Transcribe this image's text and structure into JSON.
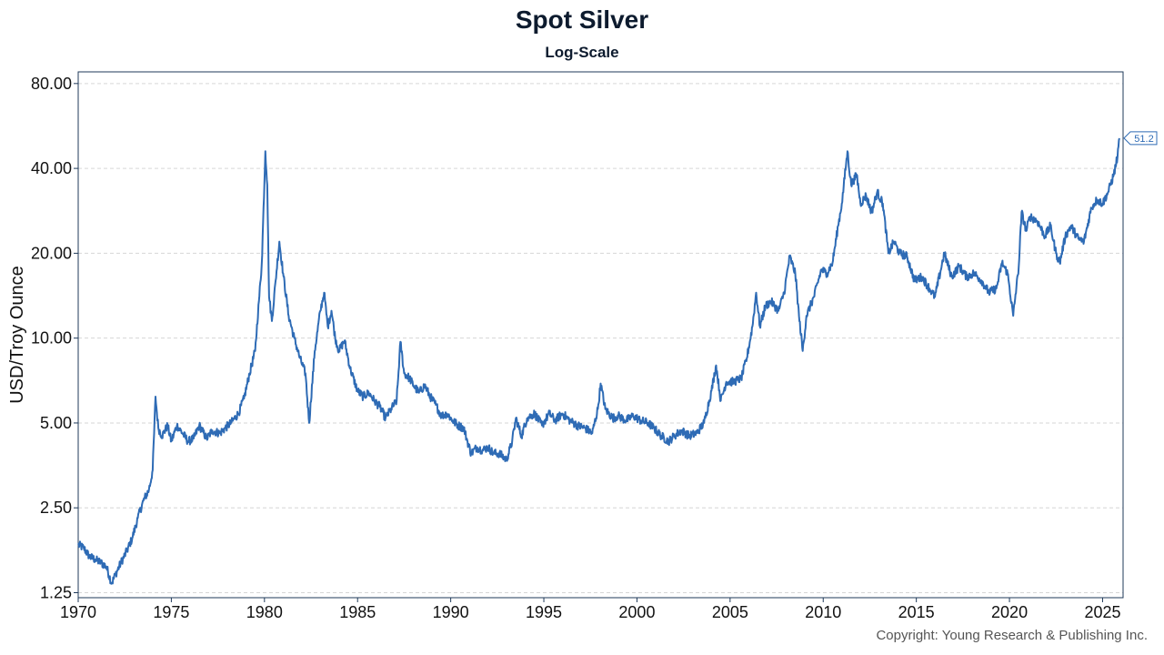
{
  "chart_data": {
    "type": "line",
    "title": "Spot Silver",
    "subtitle": "Log-Scale",
    "xlabel": "",
    "ylabel": "USD/Troy Ounce",
    "y_scale": "log",
    "ylim": [
      1.2,
      88
    ],
    "xlim": [
      1970,
      2026.1
    ],
    "y_ticks": [
      {
        "value": 80,
        "label": "80.00"
      },
      {
        "value": 40,
        "label": "40.00"
      },
      {
        "value": 20,
        "label": "20.00"
      },
      {
        "value": 10,
        "label": "10.00"
      },
      {
        "value": 5,
        "label": "5.00"
      },
      {
        "value": 2.5,
        "label": "2.50"
      },
      {
        "value": 1.25,
        "label": "1.25"
      }
    ],
    "x_ticks": [
      {
        "value": 1970,
        "label": "1970"
      },
      {
        "value": 1975,
        "label": "1975"
      },
      {
        "value": 1980,
        "label": "1980"
      },
      {
        "value": 1985,
        "label": "1985"
      },
      {
        "value": 1990,
        "label": "1990"
      },
      {
        "value": 1995,
        "label": "1995"
      },
      {
        "value": 2000,
        "label": "2000"
      },
      {
        "value": 2005,
        "label": "2005"
      },
      {
        "value": 2010,
        "label": "2010"
      },
      {
        "value": 2015,
        "label": "2015"
      },
      {
        "value": 2020,
        "label": "2020"
      },
      {
        "value": 2025,
        "label": "2025"
      }
    ],
    "grid": true,
    "series": [
      {
        "name": "Spot Silver",
        "color": "#2e6bb5",
        "last_value_label": "51.2",
        "points": [
          [
            1970.0,
            1.85
          ],
          [
            1970.3,
            1.8
          ],
          [
            1970.6,
            1.68
          ],
          [
            1970.9,
            1.64
          ],
          [
            1971.2,
            1.6
          ],
          [
            1971.5,
            1.55
          ],
          [
            1971.8,
            1.35
          ],
          [
            1972.0,
            1.45
          ],
          [
            1972.3,
            1.6
          ],
          [
            1972.6,
            1.75
          ],
          [
            1972.9,
            1.95
          ],
          [
            1973.2,
            2.3
          ],
          [
            1973.5,
            2.65
          ],
          [
            1973.8,
            2.9
          ],
          [
            1974.0,
            3.4
          ],
          [
            1974.15,
            6.2
          ],
          [
            1974.3,
            4.8
          ],
          [
            1974.5,
            4.5
          ],
          [
            1974.8,
            4.9
          ],
          [
            1975.0,
            4.3
          ],
          [
            1975.3,
            4.9
          ],
          [
            1975.6,
            4.6
          ],
          [
            1975.9,
            4.3
          ],
          [
            1976.2,
            4.4
          ],
          [
            1976.5,
            4.9
          ],
          [
            1976.9,
            4.4
          ],
          [
            1977.2,
            4.7
          ],
          [
            1977.6,
            4.6
          ],
          [
            1977.9,
            4.8
          ],
          [
            1978.2,
            5.0
          ],
          [
            1978.6,
            5.4
          ],
          [
            1978.9,
            6.1
          ],
          [
            1979.2,
            7.5
          ],
          [
            1979.5,
            9.0
          ],
          [
            1979.7,
            13.5
          ],
          [
            1979.85,
            18.0
          ],
          [
            1980.05,
            46.0
          ],
          [
            1980.15,
            35.0
          ],
          [
            1980.25,
            14.0
          ],
          [
            1980.4,
            11.5
          ],
          [
            1980.6,
            16.0
          ],
          [
            1980.8,
            22.0
          ],
          [
            1981.0,
            17.0
          ],
          [
            1981.3,
            12.0
          ],
          [
            1981.6,
            10.0
          ],
          [
            1981.9,
            8.5
          ],
          [
            1982.2,
            7.5
          ],
          [
            1982.4,
            5.0
          ],
          [
            1982.7,
            9.0
          ],
          [
            1983.0,
            12.5
          ],
          [
            1983.2,
            14.5
          ],
          [
            1983.4,
            11.0
          ],
          [
            1983.6,
            12.5
          ],
          [
            1983.8,
            10.0
          ],
          [
            1984.0,
            9.0
          ],
          [
            1984.3,
            9.8
          ],
          [
            1984.6,
            7.8
          ],
          [
            1985.0,
            6.5
          ],
          [
            1985.3,
            6.2
          ],
          [
            1985.6,
            6.4
          ],
          [
            1985.9,
            6.0
          ],
          [
            1986.2,
            5.7
          ],
          [
            1986.5,
            5.2
          ],
          [
            1986.8,
            5.6
          ],
          [
            1987.1,
            6.0
          ],
          [
            1987.3,
            9.7
          ],
          [
            1987.5,
            7.5
          ],
          [
            1987.8,
            7.2
          ],
          [
            1988.0,
            6.8
          ],
          [
            1988.3,
            6.4
          ],
          [
            1988.6,
            6.8
          ],
          [
            1988.9,
            6.2
          ],
          [
            1989.2,
            5.8
          ],
          [
            1989.5,
            5.3
          ],
          [
            1989.8,
            5.4
          ],
          [
            1990.1,
            5.1
          ],
          [
            1990.4,
            4.9
          ],
          [
            1990.7,
            4.8
          ],
          [
            1990.9,
            4.3
          ],
          [
            1991.1,
            3.9
          ],
          [
            1991.4,
            4.1
          ],
          [
            1991.7,
            4.0
          ],
          [
            1992.0,
            4.1
          ],
          [
            1992.3,
            3.9
          ],
          [
            1992.6,
            3.9
          ],
          [
            1993.0,
            3.7
          ],
          [
            1993.3,
            4.3
          ],
          [
            1993.5,
            5.2
          ],
          [
            1993.8,
            4.5
          ],
          [
            1994.1,
            5.2
          ],
          [
            1994.5,
            5.4
          ],
          [
            1994.9,
            4.9
          ],
          [
            1995.3,
            5.4
          ],
          [
            1995.6,
            5.1
          ],
          [
            1996.0,
            5.4
          ],
          [
            1996.4,
            5.1
          ],
          [
            1996.8,
            4.9
          ],
          [
            1997.2,
            4.8
          ],
          [
            1997.6,
            4.6
          ],
          [
            1997.9,
            5.6
          ],
          [
            1998.05,
            6.9
          ],
          [
            1998.3,
            5.6
          ],
          [
            1998.7,
            5.2
          ],
          [
            1999.0,
            5.3
          ],
          [
            1999.4,
            5.1
          ],
          [
            1999.8,
            5.3
          ],
          [
            2000.2,
            5.1
          ],
          [
            2000.6,
            5.0
          ],
          [
            2000.9,
            4.8
          ],
          [
            2001.3,
            4.5
          ],
          [
            2001.7,
            4.3
          ],
          [
            2002.0,
            4.5
          ],
          [
            2002.4,
            4.7
          ],
          [
            2002.8,
            4.5
          ],
          [
            2003.2,
            4.6
          ],
          [
            2003.6,
            5.0
          ],
          [
            2004.0,
            6.5
          ],
          [
            2004.25,
            8.0
          ],
          [
            2004.5,
            6.0
          ],
          [
            2004.8,
            7.0
          ],
          [
            2005.2,
            7.0
          ],
          [
            2005.6,
            7.2
          ],
          [
            2005.9,
            8.5
          ],
          [
            2006.2,
            11.0
          ],
          [
            2006.4,
            14.5
          ],
          [
            2006.6,
            11.0
          ],
          [
            2006.9,
            13.0
          ],
          [
            2007.2,
            13.5
          ],
          [
            2007.6,
            12.5
          ],
          [
            2007.9,
            14.5
          ],
          [
            2008.2,
            19.5
          ],
          [
            2008.5,
            17.0
          ],
          [
            2008.7,
            12.0
          ],
          [
            2008.9,
            9.0
          ],
          [
            2009.1,
            12.0
          ],
          [
            2009.5,
            14.0
          ],
          [
            2009.9,
            17.5
          ],
          [
            2010.2,
            17.0
          ],
          [
            2010.5,
            18.5
          ],
          [
            2010.8,
            25.0
          ],
          [
            2011.0,
            30.0
          ],
          [
            2011.3,
            46.0
          ],
          [
            2011.5,
            35.0
          ],
          [
            2011.8,
            38.0
          ],
          [
            2012.0,
            30.0
          ],
          [
            2012.3,
            32.0
          ],
          [
            2012.6,
            28.0
          ],
          [
            2012.9,
            33.0
          ],
          [
            2013.2,
            30.0
          ],
          [
            2013.5,
            20.0
          ],
          [
            2013.8,
            22.0
          ],
          [
            2014.1,
            20.0
          ],
          [
            2014.5,
            19.5
          ],
          [
            2014.9,
            16.0
          ],
          [
            2015.3,
            16.5
          ],
          [
            2015.7,
            15.0
          ],
          [
            2016.0,
            14.0
          ],
          [
            2016.5,
            20.0
          ],
          [
            2016.9,
            16.5
          ],
          [
            2017.3,
            18.0
          ],
          [
            2017.7,
            16.5
          ],
          [
            2018.1,
            17.0
          ],
          [
            2018.5,
            16.0
          ],
          [
            2018.9,
            14.5
          ],
          [
            2019.3,
            15.0
          ],
          [
            2019.6,
            18.5
          ],
          [
            2019.9,
            17.0
          ],
          [
            2020.2,
            12.0
          ],
          [
            2020.5,
            18.0
          ],
          [
            2020.65,
            28.0
          ],
          [
            2020.9,
            24.0
          ],
          [
            2021.1,
            27.0
          ],
          [
            2021.5,
            26.0
          ],
          [
            2021.9,
            23.0
          ],
          [
            2022.2,
            25.0
          ],
          [
            2022.5,
            20.0
          ],
          [
            2022.7,
            18.5
          ],
          [
            2023.0,
            23.0
          ],
          [
            2023.3,
            25.0
          ],
          [
            2023.7,
            22.5
          ],
          [
            2024.0,
            22.0
          ],
          [
            2024.4,
            29.0
          ],
          [
            2024.7,
            31.0
          ],
          [
            2025.0,
            30.0
          ],
          [
            2025.3,
            33.0
          ],
          [
            2025.6,
            38.0
          ],
          [
            2025.8,
            44.0
          ],
          [
            2025.9,
            51.2
          ]
        ]
      }
    ]
  },
  "footer": {
    "copyright": "Copyright: Young Research & Publishing Inc."
  }
}
